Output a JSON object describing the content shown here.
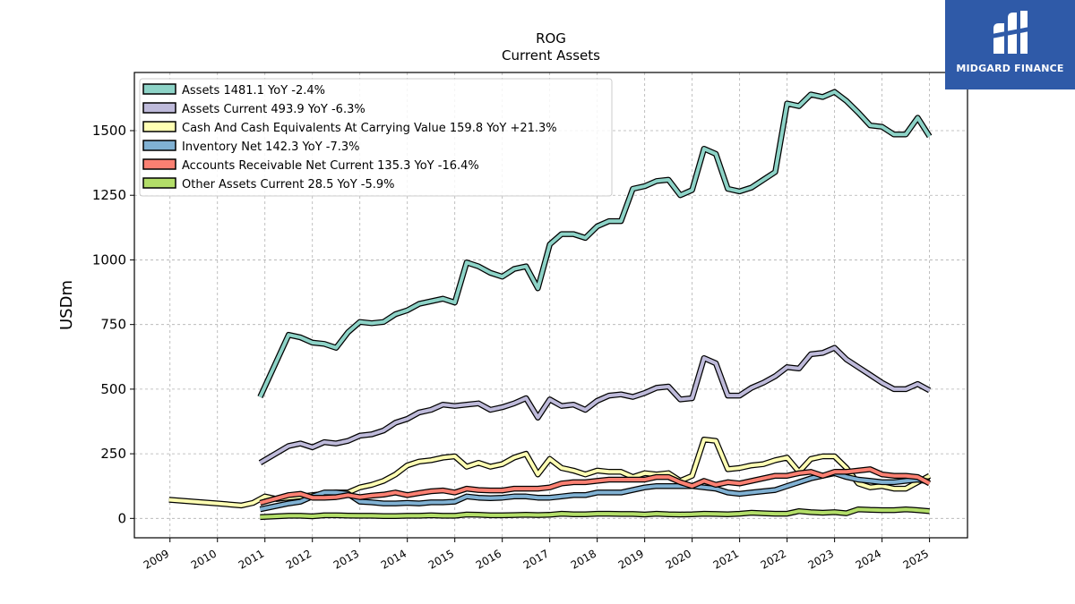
{
  "chart_data": {
    "type": "line",
    "title": "ROG",
    "subtitle": "Current  Assets",
    "xlabel": "",
    "ylabel": "USDm",
    "xlim": [
      2008.25,
      2025.8
    ],
    "ylim": [
      -75,
      1725
    ],
    "yticks": [
      0,
      250,
      500,
      750,
      1000,
      1250,
      1500
    ],
    "ytick_labels": [
      "0",
      "250",
      "500",
      "750",
      "1000",
      "1250",
      "1500"
    ],
    "xticks": [
      2009,
      2010,
      2011,
      2012,
      2013,
      2014,
      2015,
      2016,
      2017,
      2018,
      2019,
      2020,
      2021,
      2022,
      2023,
      2024,
      2025
    ],
    "xtick_labels": [
      "2009",
      "2010",
      "2011",
      "2012",
      "2013",
      "2014",
      "2015",
      "2016",
      "2017",
      "2018",
      "2019",
      "2020",
      "2021",
      "2022",
      "2023",
      "2024",
      "2025"
    ],
    "grid": true,
    "legend_position": "top-left",
    "series": [
      {
        "name": "Assets  1481.1 YoY -2.4%",
        "color": "#8dd3c7",
        "x": [
          2010.9,
          2011.5,
          2011.75,
          2012.0,
          2012.25,
          2012.5,
          2012.75,
          2013.0,
          2013.25,
          2013.5,
          2013.75,
          2014.0,
          2014.25,
          2014.5,
          2014.75,
          2015.0,
          2015.25,
          2015.5,
          2015.75,
          2016.0,
          2016.25,
          2016.5,
          2016.75,
          2017.0,
          2017.25,
          2017.5,
          2017.75,
          2018.0,
          2018.25,
          2018.5,
          2018.75,
          2019.0,
          2019.25,
          2019.5,
          2019.75,
          2020.0,
          2020.25,
          2020.5,
          2020.75,
          2021.0,
          2021.25,
          2021.5,
          2021.75,
          2022.0,
          2022.25,
          2022.5,
          2022.75,
          2023.0,
          2023.25,
          2023.5,
          2023.75,
          2024.0,
          2024.25,
          2024.5,
          2024.75,
          2025.0
        ],
        "y": [
          470,
          710,
          700,
          680,
          675,
          660,
          720,
          760,
          755,
          760,
          790,
          805,
          830,
          840,
          850,
          835,
          990,
          975,
          950,
          935,
          965,
          975,
          890,
          1060,
          1100,
          1100,
          1085,
          1130,
          1150,
          1150,
          1275,
          1285,
          1305,
          1310,
          1250,
          1270,
          1430,
          1410,
          1275,
          1265,
          1280,
          1310,
          1340,
          1605,
          1595,
          1640,
          1630,
          1650,
          1615,
          1570,
          1520,
          1515,
          1485,
          1485,
          1550,
          1478
        ]
      },
      {
        "name": "Assets Current  493.9 YoY -6.3%",
        "color": "#bebada",
        "x": [
          2010.9,
          2011.5,
          2011.75,
          2012.0,
          2012.25,
          2012.5,
          2012.75,
          2013.0,
          2013.25,
          2013.5,
          2013.75,
          2014.0,
          2014.25,
          2014.5,
          2014.75,
          2015.0,
          2015.25,
          2015.5,
          2015.75,
          2016.0,
          2016.25,
          2016.5,
          2016.75,
          2017.0,
          2017.25,
          2017.5,
          2017.75,
          2018.0,
          2018.25,
          2018.5,
          2018.75,
          2019.0,
          2019.25,
          2019.5,
          2019.75,
          2020.0,
          2020.25,
          2020.5,
          2020.75,
          2021.0,
          2021.25,
          2021.5,
          2021.75,
          2022.0,
          2022.25,
          2022.5,
          2022.75,
          2023.0,
          2023.25,
          2023.5,
          2023.75,
          2024.0,
          2024.25,
          2024.5,
          2024.75,
          2025.0
        ],
        "y": [
          215,
          280,
          290,
          275,
          295,
          290,
          300,
          320,
          325,
          340,
          370,
          385,
          410,
          420,
          440,
          435,
          440,
          445,
          420,
          430,
          445,
          465,
          390,
          460,
          435,
          440,
          420,
          455,
          475,
          480,
          470,
          485,
          505,
          510,
          460,
          465,
          620,
          600,
          475,
          475,
          505,
          525,
          550,
          585,
          580,
          635,
          640,
          660,
          615,
          585,
          555,
          525,
          500,
          500,
          520,
          495
        ]
      },
      {
        "name": "Cash And Cash Equivalents At Carrying Value  159.8 YoY +21.3%",
        "color": "#ffffb3",
        "x": [
          2008.98,
          2009.5,
          2010.0,
          2010.5,
          2010.75,
          2011.0,
          2011.25,
          2011.5,
          2011.75,
          2012.0,
          2012.25,
          2012.5,
          2012.75,
          2013.0,
          2013.25,
          2013.5,
          2013.75,
          2014.0,
          2014.25,
          2014.5,
          2014.75,
          2015.0,
          2015.25,
          2015.5,
          2015.75,
          2016.0,
          2016.25,
          2016.5,
          2016.75,
          2017.0,
          2017.25,
          2017.5,
          2017.75,
          2018.0,
          2018.25,
          2018.5,
          2018.75,
          2019.0,
          2019.25,
          2019.5,
          2019.75,
          2020.0,
          2020.25,
          2020.5,
          2020.75,
          2021.0,
          2021.25,
          2021.5,
          2021.75,
          2022.0,
          2022.25,
          2022.5,
          2022.75,
          2023.0,
          2023.25,
          2023.5,
          2023.75,
          2024.0,
          2024.25,
          2024.5,
          2024.75,
          2025.0
        ],
        "y": [
          72,
          65,
          58,
          50,
          60,
          85,
          75,
          80,
          85,
          90,
          95,
          100,
          100,
          120,
          130,
          145,
          170,
          205,
          220,
          225,
          235,
          240,
          200,
          215,
          200,
          210,
          235,
          250,
          170,
          230,
          195,
          185,
          170,
          185,
          180,
          180,
          160,
          175,
          170,
          175,
          145,
          165,
          305,
          300,
          190,
          195,
          205,
          210,
          225,
          235,
          180,
          230,
          240,
          240,
          195,
          135,
          120,
          125,
          115,
          115,
          140,
          165
        ]
      },
      {
        "name": "Inventory Net  142.3 YoY -7.3%",
        "color": "#80b1d3",
        "x": [
          2010.9,
          2011.5,
          2011.75,
          2012.0,
          2012.25,
          2012.5,
          2012.75,
          2013.0,
          2013.25,
          2013.5,
          2013.75,
          2014.0,
          2014.25,
          2014.5,
          2014.75,
          2015.0,
          2015.25,
          2015.5,
          2015.75,
          2016.0,
          2016.25,
          2016.5,
          2016.75,
          2017.0,
          2017.25,
          2017.5,
          2017.75,
          2018.0,
          2018.25,
          2018.5,
          2018.75,
          2019.0,
          2019.25,
          2019.5,
          2019.75,
          2020.0,
          2020.25,
          2020.5,
          2020.75,
          2021.0,
          2021.25,
          2021.5,
          2021.75,
          2022.0,
          2022.25,
          2022.5,
          2022.75,
          2023.0,
          2023.25,
          2023.5,
          2023.75,
          2024.0,
          2024.25,
          2024.5,
          2024.75,
          2025.0
        ],
        "y": [
          35,
          58,
          65,
          85,
          100,
          100,
          95,
          65,
          62,
          58,
          58,
          60,
          58,
          62,
          62,
          65,
          85,
          80,
          78,
          80,
          85,
          85,
          80,
          80,
          85,
          90,
          90,
          100,
          100,
          100,
          110,
          120,
          125,
          125,
          125,
          125,
          120,
          115,
          100,
          95,
          100,
          105,
          110,
          125,
          140,
          155,
          165,
          175,
          160,
          150,
          145,
          140,
          140,
          145,
          150,
          142
        ]
      },
      {
        "name": "Accounts Receivable Net Current  135.3 YoY -16.4%",
        "color": "#fb8072",
        "x": [
          2010.9,
          2011.5,
          2011.75,
          2012.0,
          2012.25,
          2012.5,
          2012.75,
          2013.0,
          2013.25,
          2013.5,
          2013.75,
          2014.0,
          2014.25,
          2014.5,
          2014.75,
          2015.0,
          2015.25,
          2015.5,
          2015.75,
          2016.0,
          2016.25,
          2016.5,
          2016.75,
          2017.0,
          2017.25,
          2017.5,
          2017.75,
          2018.0,
          2018.25,
          2018.5,
          2018.75,
          2019.0,
          2019.25,
          2019.5,
          2019.75,
          2020.0,
          2020.25,
          2020.5,
          2020.75,
          2021.0,
          2021.25,
          2021.5,
          2021.75,
          2022.0,
          2022.25,
          2022.5,
          2022.75,
          2023.0,
          2023.25,
          2023.5,
          2023.75,
          2024.0,
          2024.25,
          2024.5,
          2024.75,
          2025.0
        ],
        "y": [
          60,
          90,
          95,
          80,
          80,
          82,
          90,
          82,
          88,
          92,
          100,
          90,
          98,
          105,
          108,
          100,
          115,
          110,
          108,
          108,
          115,
          115,
          115,
          120,
          135,
          140,
          140,
          145,
          150,
          150,
          150,
          150,
          160,
          160,
          140,
          125,
          145,
          130,
          140,
          135,
          145,
          155,
          165,
          165,
          175,
          180,
          165,
          180,
          180,
          185,
          190,
          170,
          165,
          165,
          160,
          135
        ]
      },
      {
        "name": "Other Assets Current  28.5 YoY -5.9%",
        "color": "#b3de69",
        "x": [
          2010.9,
          2011.5,
          2011.75,
          2012.0,
          2012.25,
          2012.5,
          2012.75,
          2013.0,
          2013.25,
          2013.5,
          2013.75,
          2014.0,
          2014.25,
          2014.5,
          2014.75,
          2015.0,
          2015.25,
          2015.5,
          2015.75,
          2016.0,
          2016.25,
          2016.5,
          2016.75,
          2017.0,
          2017.25,
          2017.5,
          2017.75,
          2018.0,
          2018.25,
          2018.5,
          2018.75,
          2019.0,
          2019.25,
          2019.5,
          2019.75,
          2020.0,
          2020.25,
          2020.5,
          2020.75,
          2021.0,
          2021.25,
          2021.5,
          2021.75,
          2022.0,
          2022.25,
          2022.5,
          2022.75,
          2023.0,
          2023.25,
          2023.5,
          2023.75,
          2024.0,
          2024.25,
          2024.5,
          2024.75,
          2025.0
        ],
        "y": [
          5,
          10,
          10,
          8,
          12,
          12,
          11,
          10,
          10,
          9,
          9,
          10,
          10,
          12,
          10,
          10,
          15,
          14,
          12,
          12,
          13,
          14,
          13,
          14,
          18,
          16,
          16,
          18,
          18,
          17,
          17,
          15,
          18,
          16,
          15,
          16,
          18,
          17,
          16,
          18,
          22,
          20,
          18,
          18,
          28,
          24,
          22,
          24,
          20,
          35,
          33,
          32,
          32,
          35,
          32,
          28
        ]
      }
    ]
  },
  "logo": {
    "text": "MIDGARD FINANCE",
    "background": "#2f5aa8"
  }
}
